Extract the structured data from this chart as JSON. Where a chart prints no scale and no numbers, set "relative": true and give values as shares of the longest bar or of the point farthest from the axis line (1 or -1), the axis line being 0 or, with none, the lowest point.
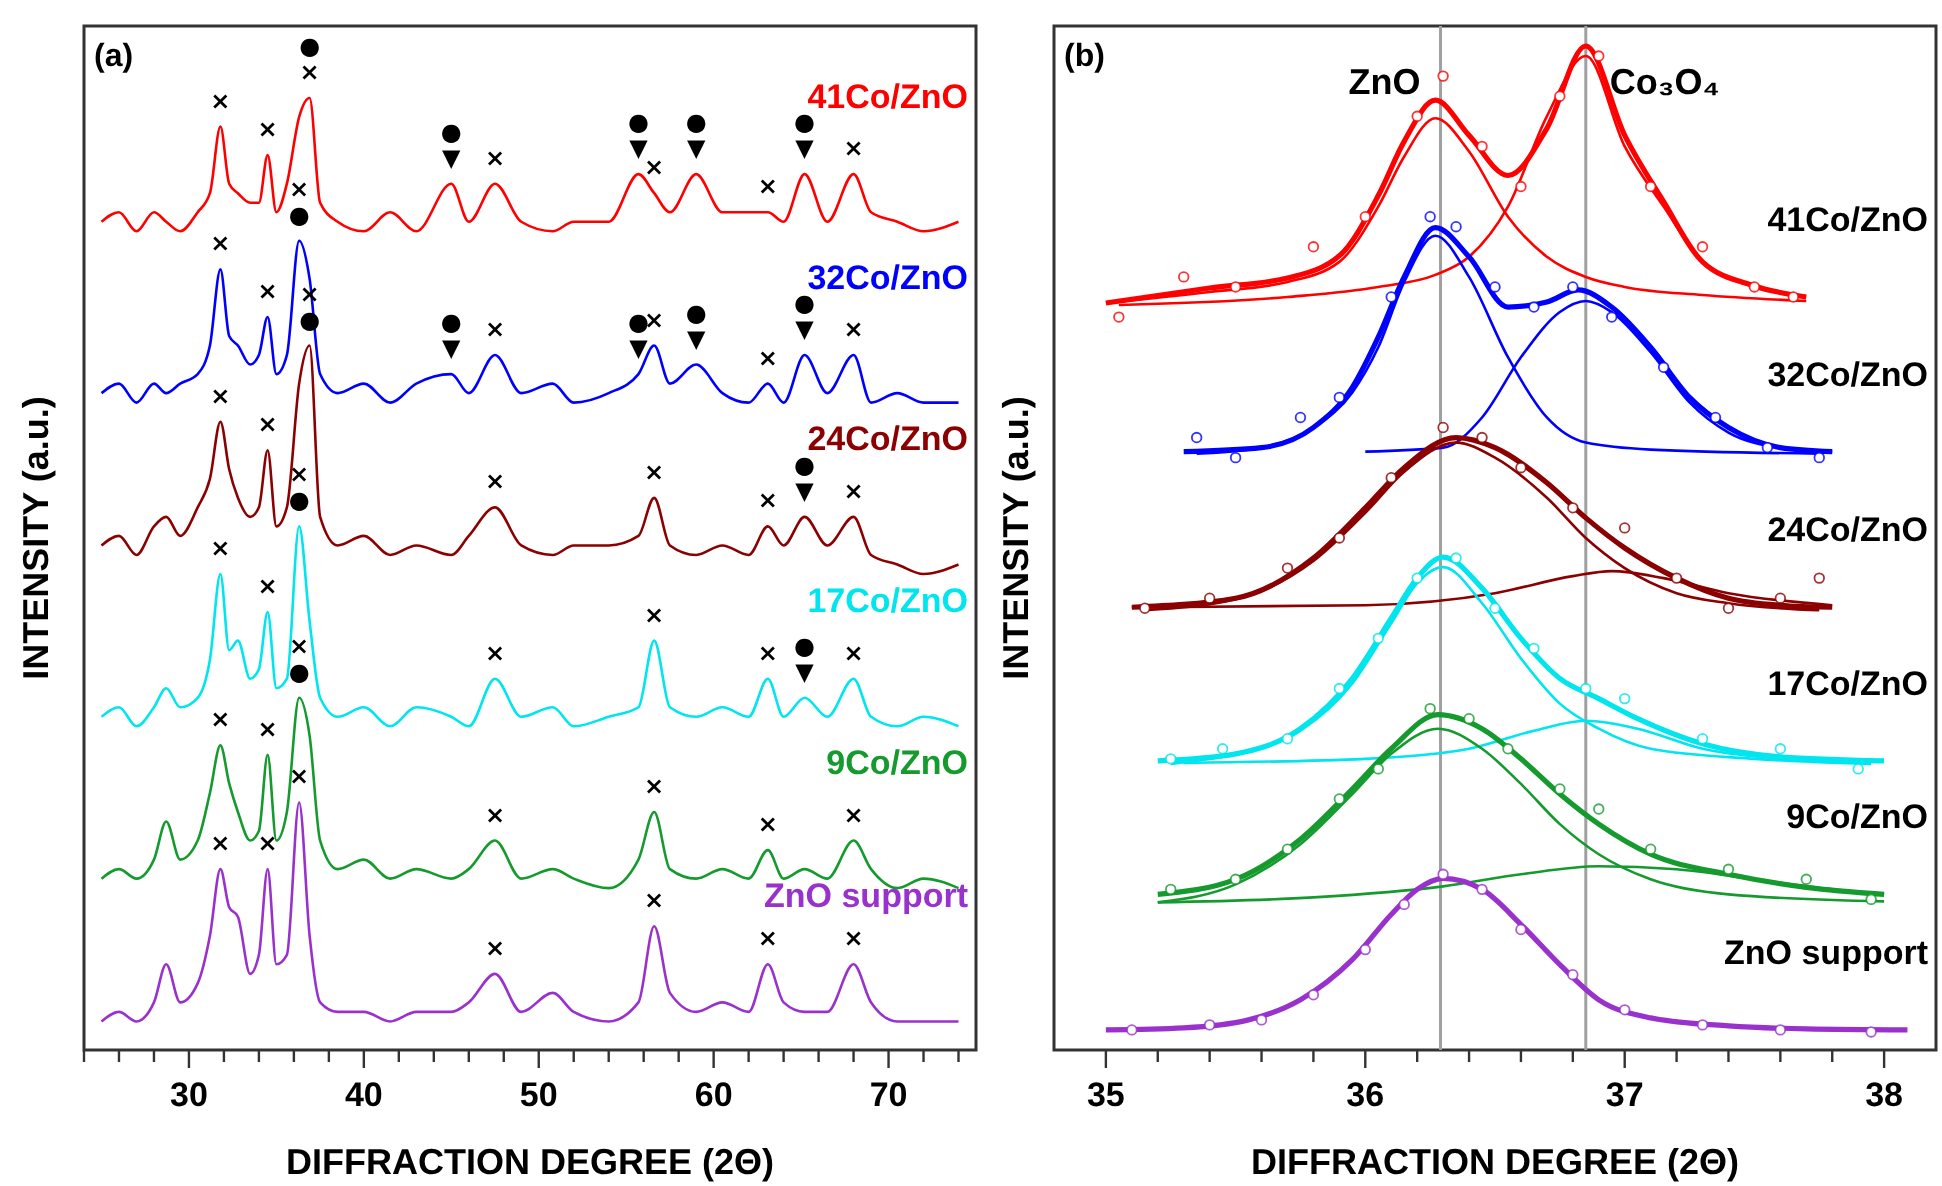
{
  "chart_data": [
    {
      "type": "line",
      "relative": true,
      "xlabel": "DIFFRACTION DEGREE  (2Θ)",
      "ylabel": "INTENSITY  (a.u.)",
      "xlim": [
        24,
        75
      ],
      "xticks": [
        {
          "value": 24,
          "label": null
        },
        {
          "value": 26,
          "label": null
        },
        {
          "value": 28,
          "label": null
        },
        30,
        {
          "value": 32,
          "label": null
        },
        {
          "value": 34,
          "label": null
        },
        {
          "value": 36,
          "label": null
        },
        {
          "value": 38,
          "label": null
        },
        40,
        {
          "value": 42,
          "label": null
        },
        {
          "value": 44,
          "label": null
        },
        {
          "value": 46,
          "label": null
        },
        {
          "value": 48,
          "label": null
        },
        50,
        {
          "value": 52,
          "label": null
        },
        {
          "value": 54,
          "label": null
        },
        {
          "value": 56,
          "label": null
        },
        {
          "value": 58,
          "label": null
        },
        60,
        {
          "value": 62,
          "label": null
        },
        {
          "value": 64,
          "label": null
        },
        {
          "value": 66,
          "label": null
        },
        {
          "value": 68,
          "label": null
        },
        70,
        {
          "value": 72,
          "label": null
        },
        {
          "value": 74,
          "label": null
        }
      ],
      "x": [
        25,
        26,
        27,
        28,
        28.7,
        29.5,
        30.5,
        31.2,
        31.8,
        32.3,
        32.8,
        33.5,
        34,
        34.5,
        35,
        35.6,
        36.3,
        36.9,
        37.5,
        38.5,
        40,
        41.5,
        43,
        45,
        46,
        47.5,
        49,
        50.8,
        52,
        54,
        55.7,
        56.6,
        57.5,
        59,
        60.5,
        62,
        63.1,
        64,
        65.2,
        66.5,
        68,
        69,
        70.5,
        72,
        74
      ],
      "series": [
        {
          "name": "41Co/ZnO",
          "color": "#ff0000",
          "values": [
            0.87,
            0.88,
            0.86,
            0.88,
            0.87,
            0.86,
            0.88,
            0.9,
            0.97,
            0.91,
            0.9,
            0.89,
            0.89,
            0.94,
            0.88,
            0.91,
            0.98,
            1.0,
            0.89,
            0.87,
            0.86,
            0.88,
            0.86,
            0.91,
            0.87,
            0.91,
            0.87,
            0.86,
            0.87,
            0.87,
            0.92,
            0.9,
            0.88,
            0.92,
            0.88,
            0.88,
            0.88,
            0.87,
            0.92,
            0.87,
            0.92,
            0.88,
            0.87,
            0.86,
            0.87
          ]
        },
        {
          "name": "32Co/ZnO",
          "color": "#0000ff",
          "values": [
            0.69,
            0.7,
            0.68,
            0.7,
            0.69,
            0.7,
            0.71,
            0.74,
            0.82,
            0.75,
            0.74,
            0.72,
            0.73,
            0.77,
            0.71,
            0.73,
            0.85,
            0.81,
            0.71,
            0.69,
            0.7,
            0.68,
            0.7,
            0.71,
            0.69,
            0.73,
            0.69,
            0.7,
            0.68,
            0.69,
            0.71,
            0.74,
            0.7,
            0.72,
            0.69,
            0.68,
            0.7,
            0.68,
            0.73,
            0.69,
            0.73,
            0.68,
            0.69,
            0.68,
            0.68
          ]
        },
        {
          "name": "24Co/ZnO",
          "color": "#8b0000",
          "values": [
            0.53,
            0.54,
            0.52,
            0.55,
            0.56,
            0.54,
            0.57,
            0.6,
            0.66,
            0.61,
            0.58,
            0.56,
            0.57,
            0.63,
            0.55,
            0.57,
            0.7,
            0.74,
            0.56,
            0.53,
            0.54,
            0.52,
            0.53,
            0.52,
            0.54,
            0.57,
            0.53,
            0.52,
            0.53,
            0.53,
            0.54,
            0.58,
            0.53,
            0.52,
            0.53,
            0.52,
            0.55,
            0.53,
            0.56,
            0.53,
            0.56,
            0.52,
            0.51,
            0.5,
            0.51
          ]
        },
        {
          "name": "17Co/ZnO",
          "color": "#00e5ee",
          "values": [
            0.35,
            0.36,
            0.34,
            0.36,
            0.38,
            0.36,
            0.37,
            0.41,
            0.5,
            0.42,
            0.43,
            0.39,
            0.4,
            0.46,
            0.38,
            0.39,
            0.55,
            0.45,
            0.37,
            0.35,
            0.36,
            0.34,
            0.36,
            0.35,
            0.34,
            0.39,
            0.35,
            0.36,
            0.34,
            0.35,
            0.36,
            0.43,
            0.36,
            0.35,
            0.36,
            0.35,
            0.39,
            0.35,
            0.37,
            0.35,
            0.39,
            0.35,
            0.34,
            0.35,
            0.34
          ]
        },
        {
          "name": "9Co/ZnO",
          "color": "#159a2e",
          "values": [
            0.18,
            0.19,
            0.18,
            0.2,
            0.24,
            0.2,
            0.22,
            0.27,
            0.32,
            0.28,
            0.25,
            0.22,
            0.23,
            0.31,
            0.22,
            0.25,
            0.37,
            0.33,
            0.22,
            0.19,
            0.2,
            0.18,
            0.19,
            0.18,
            0.19,
            0.22,
            0.18,
            0.19,
            0.18,
            0.17,
            0.2,
            0.25,
            0.19,
            0.18,
            0.19,
            0.18,
            0.21,
            0.18,
            0.19,
            0.18,
            0.22,
            0.19,
            0.17,
            0.18,
            0.17
          ]
        },
        {
          "name": "ZnO support",
          "color": "#9932cc",
          "values": [
            0.03,
            0.04,
            0.03,
            0.05,
            0.09,
            0.05,
            0.07,
            0.12,
            0.19,
            0.15,
            0.14,
            0.08,
            0.1,
            0.19,
            0.09,
            0.1,
            0.26,
            0.12,
            0.05,
            0.04,
            0.04,
            0.03,
            0.04,
            0.04,
            0.05,
            0.08,
            0.04,
            0.06,
            0.04,
            0.03,
            0.05,
            0.13,
            0.06,
            0.04,
            0.05,
            0.04,
            0.09,
            0.05,
            0.04,
            0.04,
            0.09,
            0.05,
            0.03,
            0.03,
            0.03
          ]
        }
      ],
      "annotations": [
        "(a)",
        {
          "text": "×",
          "x": 31.8,
          "y": 0.97
        },
        {
          "text": "×",
          "x": 34.5,
          "y": 0.94
        },
        {
          "text": "×",
          "x": 36.9,
          "y": 1.0
        },
        {
          "text": "●",
          "x": 36.9,
          "y": 1.0
        },
        {
          "text": "▼",
          "x": 45,
          "y": 0.91
        },
        {
          "text": "●",
          "x": 45,
          "y": 0.91
        },
        {
          "text": "×",
          "x": 47.5,
          "y": 0.91
        },
        {
          "text": "▼",
          "x": 55.7,
          "y": 0.92
        },
        {
          "text": "●",
          "x": 55.7,
          "y": 0.92
        },
        {
          "text": "×",
          "x": 56.6,
          "y": 0.9
        },
        {
          "text": "▼",
          "x": 59,
          "y": 0.92
        },
        {
          "text": "●",
          "x": 59,
          "y": 0.92
        },
        {
          "text": "×",
          "x": 63.1,
          "y": 0.88
        },
        {
          "text": "▼",
          "x": 65.2,
          "y": 0.92
        },
        {
          "text": "●",
          "x": 65.2,
          "y": 0.92
        },
        {
          "text": "×",
          "x": 68,
          "y": 0.92
        },
        {
          "text": "×",
          "x": 31.8,
          "y": 0.82
        },
        {
          "text": "×",
          "x": 34.5,
          "y": 0.77
        },
        {
          "text": "●",
          "x": 36.3,
          "y": 0.85
        },
        {
          "text": "×",
          "x": 36.3,
          "y": 0.85
        },
        {
          "text": "▼",
          "x": 45,
          "y": 0.71
        },
        {
          "text": "●",
          "x": 45,
          "y": 0.71
        },
        {
          "text": "×",
          "x": 47.5,
          "y": 0.73
        },
        {
          "text": "▼",
          "x": 55.7,
          "y": 0.71
        },
        {
          "text": "●",
          "x": 55.7,
          "y": 0.71
        },
        {
          "text": "×",
          "x": 56.6,
          "y": 0.74
        },
        {
          "text": "▼",
          "x": 59,
          "y": 0.72
        },
        {
          "text": "●",
          "x": 59,
          "y": 0.72
        },
        {
          "text": "×",
          "x": 63.1,
          "y": 0.7
        },
        {
          "text": "▼",
          "x": 65.2,
          "y": 0.73
        },
        {
          "text": "●",
          "x": 65.2,
          "y": 0.73
        },
        {
          "text": "×",
          "x": 68,
          "y": 0.73
        },
        {
          "text": "×",
          "x": 31.8,
          "y": 0.66
        },
        {
          "text": "×",
          "x": 34.5,
          "y": 0.63
        },
        {
          "text": "●",
          "x": 36.9,
          "y": 0.74
        },
        {
          "text": "×",
          "x": 36.9,
          "y": 0.74
        },
        {
          "text": "×",
          "x": 47.5,
          "y": 0.57
        },
        {
          "text": "×",
          "x": 56.6,
          "y": 0.58
        },
        {
          "text": "×",
          "x": 63.1,
          "y": 0.55
        },
        {
          "text": "▼",
          "x": 65.2,
          "y": 0.56
        },
        {
          "text": "●",
          "x": 65.2,
          "y": 0.56
        },
        {
          "text": "×",
          "x": 68,
          "y": 0.56
        },
        {
          "text": "×",
          "x": 31.8,
          "y": 0.5
        },
        {
          "text": "×",
          "x": 34.5,
          "y": 0.46
        },
        {
          "text": "●",
          "x": 36.3,
          "y": 0.55
        },
        {
          "text": "×",
          "x": 36.3,
          "y": 0.55
        },
        {
          "text": "×",
          "x": 47.5,
          "y": 0.39
        },
        {
          "text": "×",
          "x": 56.6,
          "y": 0.43
        },
        {
          "text": "×",
          "x": 63.1,
          "y": 0.39
        },
        {
          "text": "▼",
          "x": 65.2,
          "y": 0.37
        },
        {
          "text": "●",
          "x": 65.2,
          "y": 0.37
        },
        {
          "text": "×",
          "x": 68,
          "y": 0.39
        },
        {
          "text": "×",
          "x": 31.8,
          "y": 0.32
        },
        {
          "text": "×",
          "x": 34.5,
          "y": 0.31
        },
        {
          "text": "●",
          "x": 36.3,
          "y": 0.37
        },
        {
          "text": "×",
          "x": 36.3,
          "y": 0.37
        },
        {
          "text": "×",
          "x": 47.5,
          "y": 0.22
        },
        {
          "text": "×",
          "x": 56.6,
          "y": 0.25
        },
        {
          "text": "×",
          "x": 63.1,
          "y": 0.21
        },
        {
          "text": "×",
          "x": 68,
          "y": 0.22
        },
        {
          "text": "×",
          "x": 31.8,
          "y": 0.19
        },
        {
          "text": "×",
          "x": 34.5,
          "y": 0.19
        },
        {
          "text": "×",
          "x": 36.3,
          "y": 0.26
        },
        {
          "text": "×",
          "x": 47.5,
          "y": 0.08
        },
        {
          "text": "×",
          "x": 56.6,
          "y": 0.13
        },
        {
          "text": "×",
          "x": 63.1,
          "y": 0.09
        },
        {
          "text": "×",
          "x": 68,
          "y": 0.09
        }
      ]
    },
    {
      "type": "line",
      "relative": true,
      "xlabel": "DIFFRACTION DEGREE  (2Θ)",
      "ylabel": "INTENSITY  (a.u.)",
      "xlim": [
        34.8,
        38.2
      ],
      "xticks": [
        35,
        {
          "value": 35.2,
          "label": null
        },
        {
          "value": 35.4,
          "label": null
        },
        {
          "value": 35.6,
          "label": null
        },
        {
          "value": 35.8,
          "label": null
        },
        36,
        {
          "value": 36.2,
          "label": null
        },
        {
          "value": 36.4,
          "label": null
        },
        {
          "value": 36.6,
          "label": null
        },
        {
          "value": 36.8,
          "label": null
        },
        37,
        {
          "value": 37.2,
          "label": null
        },
        {
          "value": 37.4,
          "label": null
        },
        {
          "value": 37.6,
          "label": null
        },
        {
          "value": 37.8,
          "label": null
        },
        38
      ],
      "ref_lines": [
        {
          "axis": "x",
          "value": 36.29,
          "label": "ZnO",
          "color": "#a0a0a0"
        },
        {
          "axis": "x",
          "value": 36.85,
          "label": "Co₃O₄",
          "color": "#a0a0a0"
        }
      ],
      "annotations": [
        "(b)"
      ],
      "series": [
        {
          "type": "scatter",
          "marker": "circle",
          "color": "#ff0000",
          "x": [
            35.05,
            35.3,
            35.5,
            35.8,
            36.0,
            36.2,
            36.3,
            36.45,
            36.6,
            36.75,
            36.9,
            37.1,
            37.3,
            37.5,
            37.65
          ],
          "values": [
            0.73,
            0.77,
            0.76,
            0.8,
            0.83,
            0.93,
            0.97,
            0.9,
            0.86,
            0.95,
            0.99,
            0.86,
            0.8,
            0.76,
            0.75
          ]
        },
        {
          "name": "41Co/ZnO",
          "color": "#ff0000",
          "x": [
            35.0,
            35.4,
            35.7,
            35.9,
            36.05,
            36.15,
            36.27,
            36.4,
            36.55,
            36.7,
            36.85,
            37.0,
            37.15,
            37.3,
            37.5,
            37.7
          ],
          "values": [
            0.744,
            0.759,
            0.769,
            0.791,
            0.851,
            0.905,
            0.946,
            0.911,
            0.871,
            0.918,
            1.0,
            0.911,
            0.845,
            0.785,
            0.761,
            0.75
          ]
        },
        {
          "color": "#ff0000",
          "x": [
            35.0,
            35.4,
            35.7,
            35.9,
            36.05,
            36.15,
            36.27,
            36.4,
            36.55,
            36.7,
            36.85,
            37.0,
            37.3,
            37.7
          ],
          "values": [
            0.744,
            0.755,
            0.765,
            0.785,
            0.84,
            0.89,
            0.928,
            0.895,
            0.83,
            0.79,
            0.77,
            0.76,
            0.752,
            0.746
          ]
        },
        {
          "color": "#ff0000",
          "x": [
            35.05,
            35.7,
            36.05,
            36.27,
            36.4,
            36.55,
            36.7,
            36.85,
            37.0,
            37.15,
            37.3,
            37.5,
            37.65
          ],
          "values": [
            0.742,
            0.75,
            0.76,
            0.772,
            0.79,
            0.84,
            0.93,
            0.99,
            0.9,
            0.84,
            0.785,
            0.76,
            0.752
          ]
        },
        {
          "type": "scatter",
          "marker": "circle",
          "color": "#0000ff",
          "x": [
            35.35,
            35.5,
            35.75,
            35.9,
            36.1,
            36.25,
            36.35,
            36.5,
            36.65,
            36.8,
            36.95,
            37.15,
            37.35,
            37.55,
            37.75
          ],
          "values": [
            0.61,
            0.59,
            0.63,
            0.65,
            0.75,
            0.83,
            0.82,
            0.76,
            0.74,
            0.76,
            0.73,
            0.68,
            0.63,
            0.6,
            0.59
          ]
        },
        {
          "name": "32Co/ZnO",
          "color": "#0000ff",
          "x": [
            35.3,
            35.6,
            35.8,
            35.95,
            36.05,
            36.15,
            36.27,
            36.4,
            36.55,
            36.7,
            36.82,
            36.95,
            37.1,
            37.25,
            37.4,
            37.6,
            37.8
          ],
          "values": [
            0.596,
            0.6,
            0.62,
            0.66,
            0.71,
            0.77,
            0.819,
            0.79,
            0.74,
            0.745,
            0.757,
            0.74,
            0.7,
            0.65,
            0.62,
            0.6,
            0.596
          ]
        },
        {
          "color": "#0000ff",
          "x": [
            35.35,
            35.6,
            35.8,
            35.95,
            36.05,
            36.15,
            36.27,
            36.4,
            36.55,
            36.7,
            36.85,
            37.1,
            37.75
          ],
          "values": [
            0.594,
            0.6,
            0.62,
            0.655,
            0.7,
            0.765,
            0.811,
            0.77,
            0.69,
            0.63,
            0.605,
            0.598,
            0.594
          ]
        },
        {
          "color": "#0000ff",
          "x": [
            36.0,
            36.3,
            36.45,
            36.6,
            36.75,
            36.85,
            36.95,
            37.1,
            37.25,
            37.4,
            37.6,
            37.8
          ],
          "values": [
            0.596,
            0.6,
            0.63,
            0.69,
            0.735,
            0.746,
            0.735,
            0.695,
            0.645,
            0.615,
            0.6,
            0.596
          ]
        },
        {
          "type": "scatter",
          "marker": "circle",
          "color": "#8b0000",
          "x": [
            35.15,
            35.4,
            35.7,
            35.9,
            36.1,
            36.3,
            36.45,
            36.6,
            36.8,
            37.0,
            37.2,
            37.4,
            37.6,
            37.75
          ],
          "values": [
            0.44,
            0.45,
            0.48,
            0.51,
            0.57,
            0.62,
            0.61,
            0.58,
            0.54,
            0.52,
            0.47,
            0.44,
            0.45,
            0.47
          ]
        },
        {
          "name": "24Co/ZnO",
          "color": "#8b0000",
          "x": [
            35.1,
            35.5,
            35.8,
            36.0,
            36.15,
            36.35,
            36.5,
            36.7,
            36.85,
            37.0,
            37.2,
            37.4,
            37.6,
            37.8
          ],
          "values": [
            0.441,
            0.45,
            0.49,
            0.54,
            0.58,
            0.61,
            0.6,
            0.565,
            0.53,
            0.5,
            0.47,
            0.45,
            0.443,
            0.441
          ]
        },
        {
          "color": "#8b0000",
          "x": [
            35.15,
            35.5,
            35.8,
            36.0,
            36.15,
            36.35,
            36.5,
            36.7,
            36.85,
            37.0,
            37.2,
            37.4,
            37.75
          ],
          "values": [
            0.438,
            0.449,
            0.487,
            0.535,
            0.576,
            0.605,
            0.59,
            0.55,
            0.51,
            0.48,
            0.455,
            0.445,
            0.438
          ]
        },
        {
          "color": "#8b0000",
          "x": [
            35.1,
            36.0,
            36.5,
            36.8,
            36.95,
            37.15,
            37.4,
            37.8
          ],
          "values": [
            0.441,
            0.443,
            0.455,
            0.472,
            0.477,
            0.47,
            0.455,
            0.443
          ]
        },
        {
          "type": "scatter",
          "marker": "circle",
          "color": "#00e5ee",
          "x": [
            35.25,
            35.45,
            35.7,
            35.9,
            36.05,
            36.2,
            36.35,
            36.5,
            36.65,
            36.85,
            37.0,
            37.3,
            37.6,
            37.9
          ],
          "values": [
            0.29,
            0.3,
            0.31,
            0.36,
            0.41,
            0.47,
            0.49,
            0.44,
            0.4,
            0.36,
            0.35,
            0.31,
            0.3,
            0.28
          ]
        },
        {
          "name": "17Co/ZnO",
          "color": "#00e5ee",
          "x": [
            35.2,
            35.5,
            35.75,
            35.95,
            36.1,
            36.2,
            36.3,
            36.45,
            36.6,
            36.75,
            36.9,
            37.05,
            37.3,
            37.6,
            38.0
          ],
          "values": [
            0.288,
            0.295,
            0.32,
            0.37,
            0.43,
            0.47,
            0.491,
            0.46,
            0.41,
            0.37,
            0.35,
            0.33,
            0.305,
            0.292,
            0.288
          ]
        },
        {
          "color": "#00e5ee",
          "x": [
            35.25,
            35.5,
            35.75,
            35.95,
            36.1,
            36.2,
            36.3,
            36.45,
            36.6,
            36.75,
            36.9,
            37.1,
            37.5,
            37.95
          ],
          "values": [
            0.285,
            0.295,
            0.318,
            0.365,
            0.425,
            0.465,
            0.481,
            0.445,
            0.39,
            0.345,
            0.32,
            0.3,
            0.29,
            0.285
          ]
        },
        {
          "color": "#00e5ee",
          "x": [
            35.3,
            36.0,
            36.4,
            36.65,
            36.85,
            37.05,
            37.3,
            37.6,
            37.9
          ],
          "values": [
            0.286,
            0.29,
            0.3,
            0.318,
            0.328,
            0.32,
            0.3,
            0.29,
            0.286
          ]
        },
        {
          "type": "scatter",
          "marker": "circle",
          "color": "#159a2e",
          "x": [
            35.25,
            35.5,
            35.7,
            35.9,
            36.05,
            36.25,
            36.4,
            36.55,
            36.75,
            36.9,
            37.1,
            37.4,
            37.7,
            37.95
          ],
          "values": [
            0.16,
            0.17,
            0.2,
            0.25,
            0.28,
            0.34,
            0.33,
            0.3,
            0.26,
            0.24,
            0.2,
            0.18,
            0.17,
            0.15
          ]
        },
        {
          "name": "9Co/ZnO",
          "color": "#159a2e",
          "x": [
            35.2,
            35.5,
            35.75,
            35.95,
            36.1,
            36.28,
            36.45,
            36.6,
            36.75,
            36.9,
            37.1,
            37.4,
            37.7,
            38.0
          ],
          "values": [
            0.155,
            0.17,
            0.21,
            0.26,
            0.3,
            0.334,
            0.32,
            0.29,
            0.255,
            0.225,
            0.195,
            0.175,
            0.162,
            0.155
          ]
        },
        {
          "color": "#159a2e",
          "x": [
            35.2,
            35.5,
            35.75,
            35.95,
            36.1,
            36.28,
            36.45,
            36.6,
            36.75,
            36.9,
            37.1,
            37.4,
            38.0
          ],
          "values": [
            0.147,
            0.165,
            0.205,
            0.255,
            0.295,
            0.32,
            0.3,
            0.265,
            0.225,
            0.195,
            0.17,
            0.155,
            0.148
          ]
        },
        {
          "color": "#159a2e",
          "x": [
            35.2,
            35.8,
            36.3,
            36.6,
            36.9,
            37.2,
            37.5,
            37.8,
            38.0
          ],
          "values": [
            0.147,
            0.152,
            0.163,
            0.175,
            0.183,
            0.18,
            0.17,
            0.16,
            0.155
          ]
        },
        {
          "type": "scatter",
          "marker": "circle",
          "color": "#9932cc",
          "x": [
            35.1,
            35.4,
            35.6,
            35.8,
            36.0,
            36.15,
            36.3,
            36.45,
            36.6,
            36.8,
            37.0,
            37.3,
            37.6,
            37.95
          ],
          "values": [
            0.02,
            0.025,
            0.03,
            0.055,
            0.1,
            0.145,
            0.175,
            0.16,
            0.12,
            0.075,
            0.04,
            0.025,
            0.02,
            0.018
          ]
        },
        {
          "name": "ZnO support",
          "color": "#9932cc",
          "x": [
            35.0,
            35.3,
            35.55,
            35.75,
            35.95,
            36.1,
            36.2,
            36.3,
            36.45,
            36.6,
            36.75,
            36.9,
            37.1,
            37.4,
            37.7,
            38.09
          ],
          "values": [
            0.02,
            0.022,
            0.03,
            0.05,
            0.09,
            0.135,
            0.16,
            0.171,
            0.16,
            0.125,
            0.085,
            0.05,
            0.032,
            0.024,
            0.021,
            0.02
          ]
        }
      ]
    }
  ]
}
